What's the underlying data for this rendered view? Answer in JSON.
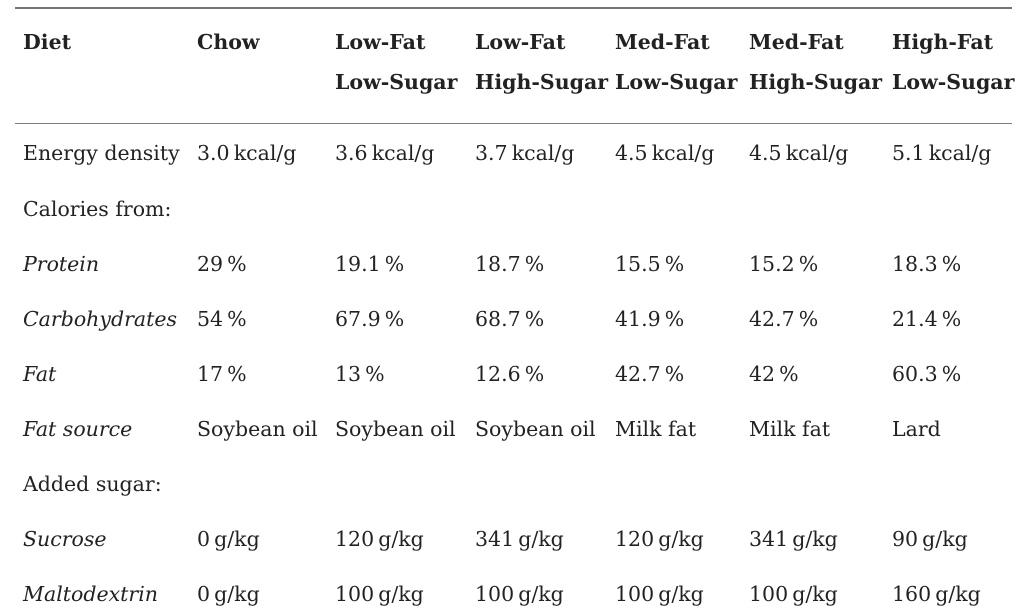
{
  "table": {
    "columns": [
      {
        "line1": "Diet",
        "line2": ""
      },
      {
        "line1": "Chow",
        "line2": ""
      },
      {
        "line1": "Low-Fat",
        "line2": "Low-Sugar"
      },
      {
        "line1": "Low-Fat",
        "line2": "High-Sugar"
      },
      {
        "line1": "Med-Fat",
        "line2": "Low-Sugar"
      },
      {
        "line1": "Med-Fat",
        "line2": "High-Sugar"
      },
      {
        "line1": "High-Fat",
        "line2": "Low-Sugar"
      }
    ],
    "rows": [
      {
        "label": "Energy density",
        "values": [
          "3.0 kcal/g",
          "3.6 kcal/g",
          "3.7 kcal/g",
          "4.5 kcal/g",
          "4.5 kcal/g",
          "5.1 kcal/g"
        ]
      },
      {
        "label": "Calories from:",
        "values": [
          "",
          "",
          "",
          "",
          "",
          ""
        ]
      },
      {
        "label": "Protein",
        "values": [
          "29 %",
          "19.1 %",
          "18.7 %",
          "15.5 %",
          "15.2 %",
          "18.3 %"
        ]
      },
      {
        "label": "Carbohydrates",
        "values": [
          "54 %",
          "67.9 %",
          "68.7 %",
          "41.9 %",
          "42.7 %",
          "21.4 %"
        ]
      },
      {
        "label": "Fat",
        "values": [
          "17 %",
          "13 %",
          "12.6 %",
          "42.7 %",
          "42 %",
          "60.3 %"
        ]
      },
      {
        "label": "Fat source",
        "values": [
          "Soybean oil",
          "Soybean oil",
          "Soybean oil",
          "Milk fat",
          "Milk fat",
          "Lard"
        ]
      },
      {
        "label": "Added sugar:",
        "values": [
          "",
          "",
          "",
          "",
          "",
          ""
        ]
      },
      {
        "label": "Sucrose",
        "values": [
          "0 g/kg",
          "120 g/kg",
          "341 g/kg",
          "120 g/kg",
          "341 g/kg",
          "90 g/kg"
        ]
      },
      {
        "label": "Maltodextrin",
        "values": [
          "0 g/kg",
          "100 g/kg",
          "100 g/kg",
          "100 g/kg",
          "100 g/kg",
          "160 g/kg"
        ]
      }
    ]
  }
}
